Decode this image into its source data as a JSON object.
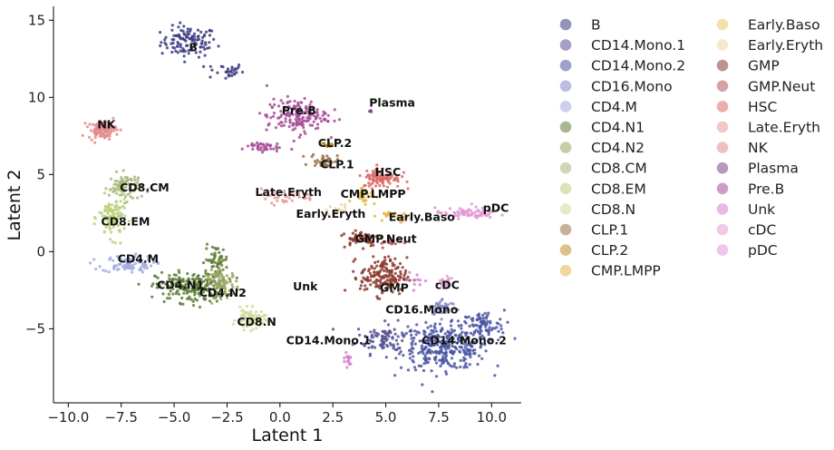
{
  "chart_data": {
    "type": "scatter",
    "title": "",
    "xlabel": "Latent 1",
    "ylabel": "Latent 2",
    "xlim": [
      -10.7,
      11.4
    ],
    "ylim": [
      -9.8,
      15.9
    ],
    "xticks": [
      -10.0,
      -7.5,
      -5.0,
      -2.5,
      0.0,
      2.5,
      5.0,
      7.5,
      10.0
    ],
    "xtick_labels": [
      "−10.0",
      "−7.5",
      "−5.0",
      "−2.5",
      "0.0",
      "2.5",
      "5.0",
      "7.5",
      "10.0"
    ],
    "yticks": [
      -5,
      0,
      5,
      10,
      15
    ],
    "ytick_labels": [
      "−5",
      "0",
      "5",
      "10",
      "15"
    ],
    "grid": false,
    "legend_position": "right, outside plot, two columns",
    "series": [
      {
        "name": "B",
        "color": "#3b3b83",
        "label_at": [
          -4.1,
          13.2
        ],
        "clusters": [
          [
            -4.3,
            13.6,
            1.2,
            0.9,
            110
          ],
          [
            -2.6,
            11.7,
            0.8,
            0.5,
            30
          ]
        ]
      },
      {
        "name": "CD14.Mono.1",
        "color": "#5a5496",
        "label_at": [
          2.3,
          -5.8
        ],
        "clusters": [
          [
            5.0,
            -5.6,
            1.3,
            0.9,
            100
          ]
        ]
      },
      {
        "name": "CD14.Mono.2",
        "color": "#4a55a2",
        "label_at": [
          8.7,
          -5.8
        ],
        "clusters": [
          [
            7.8,
            -6.2,
            1.9,
            1.3,
            320
          ],
          [
            9.6,
            -4.8,
            0.9,
            0.9,
            80
          ]
        ]
      },
      {
        "name": "CD16.Mono",
        "color": "#8388c8",
        "label_at": [
          6.7,
          -3.8
        ],
        "clusters": [
          [
            7.7,
            -3.6,
            0.6,
            0.5,
            40
          ]
        ]
      },
      {
        "name": "CD4.M",
        "color": "#a3aadf",
        "label_at": [
          -6.7,
          -0.5
        ],
        "clusters": [
          [
            -7.2,
            -0.8,
            1.1,
            0.5,
            90
          ]
        ]
      },
      {
        "name": "CD4.N1",
        "color": "#5f7d36",
        "label_at": [
          -4.7,
          -2.2
        ],
        "clusters": [
          [
            -4.2,
            -2.3,
            1.5,
            0.9,
            220
          ],
          [
            -3.0,
            -0.5,
            0.5,
            0.8,
            50
          ]
        ]
      },
      {
        "name": "CD4.N2",
        "color": "#98a663",
        "label_at": [
          -2.7,
          -2.7
        ],
        "clusters": [
          [
            -2.7,
            -2.1,
            0.7,
            0.8,
            80
          ]
        ]
      },
      {
        "name": "CD8.CM",
        "color": "#a7b67c",
        "label_at": [
          -6.4,
          4.1
        ],
        "clusters": [
          [
            -7.3,
            4.2,
            0.7,
            0.8,
            90
          ]
        ]
      },
      {
        "name": "CD8.EM",
        "color": "#bcd07b",
        "label_at": [
          -7.3,
          1.9
        ],
        "clusters": [
          [
            -7.9,
            2.2,
            0.6,
            1.2,
            110
          ]
        ]
      },
      {
        "name": "CD8.N",
        "color": "#d0db9c",
        "label_at": [
          -1.1,
          -4.6
        ],
        "clusters": [
          [
            -1.4,
            -4.4,
            0.6,
            0.6,
            80
          ]
        ]
      },
      {
        "name": "CLP.1",
        "color": "#98714a",
        "label_at": [
          2.7,
          5.6
        ],
        "clusters": [
          [
            2.1,
            5.9,
            0.6,
            0.4,
            40
          ]
        ]
      },
      {
        "name": "CLP.2",
        "color": "#bd9128",
        "label_at": [
          2.6,
          7.0
        ],
        "clusters": [
          [
            2.3,
            7.0,
            0.3,
            0.3,
            15
          ]
        ]
      },
      {
        "name": "CMP.LMPP",
        "color": "#e4b84a",
        "label_at": [
          4.4,
          3.7
        ],
        "clusters": [
          [
            4.0,
            3.7,
            0.5,
            0.5,
            30
          ],
          [
            5.0,
            2.3,
            0.4,
            0.3,
            15
          ]
        ]
      },
      {
        "name": "Early.Baso",
        "color": "#ebc56a",
        "label_at": [
          6.7,
          2.2
        ],
        "clusters": [
          [
            5.7,
            2.2,
            0.3,
            0.4,
            15
          ]
        ]
      },
      {
        "name": "Early.Eryth",
        "color": "#efd6a5",
        "label_at": [
          2.4,
          2.4
        ],
        "clusters": [
          [
            2.7,
            2.7,
            0.5,
            0.3,
            15
          ]
        ]
      },
      {
        "name": "GMP",
        "color": "#8b3a2f",
        "label_at": [
          5.4,
          -2.4
        ],
        "clusters": [
          [
            4.9,
            -1.6,
            1.0,
            1.1,
            170
          ],
          [
            3.8,
            0.9,
            0.8,
            0.5,
            60
          ]
        ]
      },
      {
        "name": "GMP.Neut",
        "color": "#b75555",
        "label_at": [
          5.0,
          0.8
        ],
        "clusters": [
          [
            5.3,
            0.6,
            0.5,
            0.3,
            20
          ]
        ]
      },
      {
        "name": "HSC",
        "color": "#dc6a6a",
        "label_at": [
          5.1,
          5.1
        ],
        "clusters": [
          [
            4.8,
            4.8,
            0.8,
            0.6,
            100
          ]
        ]
      },
      {
        "name": "Late.Eryth",
        "color": "#e39b9b",
        "label_at": [
          0.4,
          3.8
        ],
        "clusters": [
          [
            0.2,
            3.6,
            1.4,
            0.4,
            40
          ]
        ]
      },
      {
        "name": "NK",
        "color": "#e38a8a",
        "label_at": [
          -8.2,
          8.2
        ],
        "clusters": [
          [
            -8.4,
            7.9,
            0.6,
            0.5,
            100
          ]
        ]
      },
      {
        "name": "Plasma",
        "color": "#7a4685",
        "label_at": [
          5.3,
          9.6
        ],
        "clusters": [
          [
            4.3,
            9.1,
            0.12,
            0.12,
            4
          ]
        ]
      },
      {
        "name": "Pre.B",
        "color": "#a64c97",
        "label_at": [
          0.9,
          9.1
        ],
        "clusters": [
          [
            0.8,
            8.8,
            1.3,
            1.0,
            170
          ],
          [
            -0.9,
            6.8,
            0.8,
            0.3,
            40
          ]
        ]
      },
      {
        "name": "Unk",
        "color": "#d57fd0",
        "label_at": [
          1.2,
          -2.3
        ],
        "clusters": [
          [
            3.2,
            -7.0,
            0.2,
            0.4,
            15
          ],
          [
            6.5,
            -1.8,
            0.4,
            0.6,
            10
          ]
        ]
      },
      {
        "name": "cDC",
        "color": "#e09fd4",
        "label_at": [
          7.9,
          -2.2
        ],
        "clusters": [
          [
            7.8,
            -2.0,
            0.4,
            0.4,
            20
          ]
        ]
      },
      {
        "name": "pDC",
        "color": "#e195d6",
        "label_at": [
          10.2,
          2.8
        ],
        "clusters": [
          [
            8.8,
            2.5,
            1.3,
            0.3,
            70
          ]
        ]
      }
    ]
  }
}
